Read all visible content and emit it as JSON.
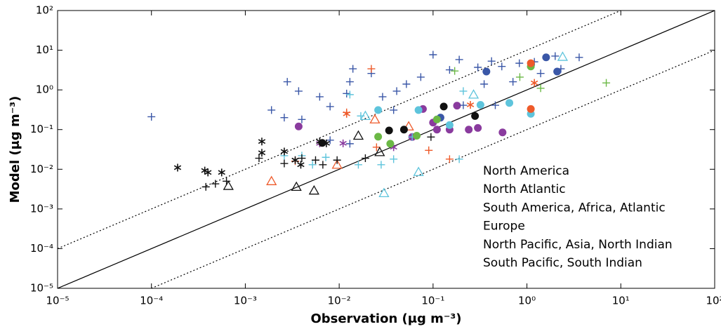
{
  "chart_data": {
    "type": "scatter",
    "xlabel": "Observation (μg m⁻³)",
    "ylabel": "Model (μg m⁻³)",
    "xscale": "log",
    "yscale": "log",
    "xlim": [
      1e-05,
      100
    ],
    "ylim": [
      1e-05,
      100
    ],
    "xticks": [
      {
        "value": 1e-05,
        "label": "10⁻⁵"
      },
      {
        "value": 0.0001,
        "label": "10⁻⁴"
      },
      {
        "value": 0.001,
        "label": "10⁻³"
      },
      {
        "value": 0.01,
        "label": "10⁻²"
      },
      {
        "value": 0.1,
        "label": "10⁻¹"
      },
      {
        "value": 1,
        "label": "10⁰"
      },
      {
        "value": 10,
        "label": "10¹"
      },
      {
        "value": 100,
        "label": "10²"
      }
    ],
    "yticks": [
      {
        "value": 1e-05,
        "label": "10⁻⁵"
      },
      {
        "value": 0.0001,
        "label": "10⁻⁴"
      },
      {
        "value": 0.001,
        "label": "10⁻³"
      },
      {
        "value": 0.01,
        "label": "10⁻²"
      },
      {
        "value": 0.1,
        "label": "10⁻¹"
      },
      {
        "value": 1,
        "label": "10⁰"
      },
      {
        "value": 10,
        "label": "10¹"
      },
      {
        "value": 100,
        "label": "10²"
      }
    ],
    "legend": "lower right",
    "series": [
      {
        "name": "North America",
        "color": "#8a3b9e",
        "groups": [
          {
            "marker": "circle",
            "x": [
              0.0037,
              0.078,
              0.11,
              0.15,
              0.24,
              0.3,
              0.55,
              0.06,
              0.1,
              0.18
            ],
            "y": [
              0.12,
              0.33,
              0.1,
              0.1,
              0.1,
              0.11,
              0.085,
              0.065,
              0.15,
              0.4
            ]
          },
          {
            "marker": "asterisk",
            "x": [
              0.0062,
              0.011,
              0.038
            ],
            "y": [
              0.045,
              0.045,
              0.036
            ]
          }
        ]
      },
      {
        "name": "North Atlantic",
        "color": "#3a57a7",
        "groups": [
          {
            "marker": "plus",
            "x": [
              0.0001,
              0.0019,
              0.0028,
              0.0037,
              0.0026,
              0.004,
              0.0062,
              0.008,
              0.012,
              0.014,
              0.022,
              0.041,
              0.052,
              0.074,
              0.1,
              0.15,
              0.19,
              0.3,
              0.42,
              0.54,
              0.71,
              0.83,
              1.2,
              1.4,
              2.0,
              2.3,
              0.46,
              0.35,
              0.21,
              0.029,
              0.038,
              0.008,
              0.013,
              3.6,
              0.013
            ],
            "y": [
              0.21,
              0.31,
              1.6,
              0.93,
              0.2,
              0.18,
              0.67,
              0.38,
              0.81,
              3.4,
              2.6,
              0.93,
              1.4,
              2.1,
              7.7,
              3.2,
              5.8,
              3.7,
              5.3,
              3.9,
              1.6,
              4.7,
              5.1,
              2.6,
              7.1,
              3.4,
              0.41,
              1.4,
              0.41,
              0.67,
              0.31,
              0.054,
              0.044,
              6.6,
              1.6
            ]
          },
          {
            "marker": "circle",
            "x": [
              0.37,
              1.6,
              2.1,
              0.12
            ],
            "y": [
              2.9,
              6.6,
              2.9,
              0.2
            ]
          }
        ]
      },
      {
        "name": "South America, Africa, Atlantic",
        "color": "#5ec4dc",
        "groups": [
          {
            "marker": "circle",
            "x": [
              0.026,
              0.07,
              0.32,
              0.65,
              1.1,
              0.15
            ],
            "y": [
              0.31,
              0.31,
              0.42,
              0.47,
              0.25,
              0.13
            ]
          },
          {
            "marker": "plus",
            "x": [
              0.0026,
              0.004,
              0.0052,
              0.0072,
              0.013,
              0.016,
              0.017,
              0.028,
              0.038,
              0.06,
              0.19,
              0.21
            ],
            "y": [
              0.022,
              0.022,
              0.013,
              0.02,
              0.76,
              0.013,
              0.22,
              0.013,
              0.018,
              0.065,
              0.018,
              0.93
            ]
          },
          {
            "marker": "triangle",
            "x": [
              0.019,
              0.07,
              0.03,
              0.27,
              2.4
            ],
            "y": [
              0.22,
              0.0085,
              0.0025,
              0.76,
              6.8
            ]
          }
        ]
      },
      {
        "name": "Europe",
        "color": "#6bb845",
        "groups": [
          {
            "marker": "circle",
            "x": [
              0.026,
              0.035,
              0.067,
              0.11,
              1.1
            ],
            "y": [
              0.066,
              0.044,
              0.07,
              0.18,
              3.9
            ]
          },
          {
            "marker": "plus",
            "x": [
              7.0,
              1.4,
              0.17,
              0.84
            ],
            "y": [
              1.5,
              1.1,
              3.0,
              2.1
            ]
          }
        ]
      },
      {
        "name": "North Pacific, Asia, North Indian",
        "color": "#ee5a2a",
        "groups": [
          {
            "marker": "circle",
            "x": [
              1.1,
              1.1
            ],
            "y": [
              0.33,
              4.7
            ]
          },
          {
            "marker": "plus",
            "x": [
              0.012,
              0.022,
              0.025,
              0.09,
              0.15,
              0.0034
            ],
            "y": [
              0.27,
              3.4,
              0.036,
              0.03,
              0.018,
              0.016
            ]
          },
          {
            "marker": "triangle",
            "x": [
              0.0019,
              0.0095,
              0.024,
              0.055
            ],
            "y": [
              0.005,
              0.013,
              0.18,
              0.12
            ]
          },
          {
            "marker": "asterisk",
            "x": [
              0.012,
              0.25,
              1.2
            ],
            "y": [
              0.25,
              0.42,
              1.5
            ]
          }
        ]
      },
      {
        "name": "South Pacific, South Indian",
        "color": "#111111",
        "groups": [
          {
            "marker": "circle",
            "x": [
              0.034,
              0.049,
              0.13,
              0.28,
              0.0066
            ],
            "y": [
              0.095,
              0.1,
              0.38,
              0.22,
              0.046
            ]
          },
          {
            "marker": "plus",
            "x": [
              0.00038,
              0.00048,
              0.00063,
              0.0014,
              0.0026,
              0.004,
              0.0056,
              0.0095,
              0.019,
              0.095,
              0.0067
            ],
            "y": [
              0.0036,
              0.0043,
              0.005,
              0.019,
              0.014,
              0.019,
              0.017,
              0.017,
              0.019,
              0.065,
              0.013
            ]
          },
          {
            "marker": "asterisk",
            "x": [
              0.00019,
              0.00037,
              0.0004,
              0.00056,
              0.0015,
              0.0015,
              0.0026,
              0.0034,
              0.0039,
              0.0062,
              0.0073
            ],
            "y": [
              0.011,
              0.0093,
              0.0083,
              0.0083,
              0.05,
              0.026,
              0.028,
              0.017,
              0.013,
              0.05,
              0.045
            ]
          },
          {
            "marker": "triangle",
            "x": [
              0.00066,
              0.0035,
              0.0054,
              0.016,
              0.027
            ],
            "y": [
              0.0038,
              0.0036,
              0.0029,
              0.07,
              0.027
            ]
          }
        ]
      }
    ]
  }
}
